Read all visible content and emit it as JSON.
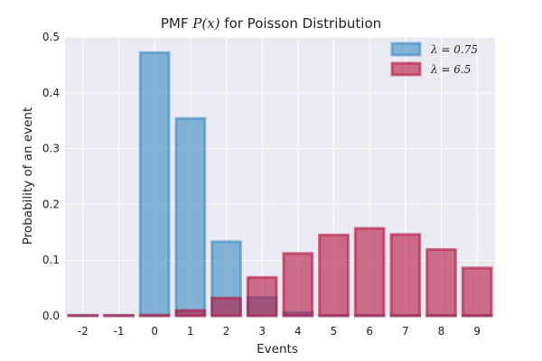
{
  "chart_data": {
    "type": "bar",
    "title_prefix": "PMF ",
    "title_math": "P(x)",
    "title_suffix": " for Poisson Distribution",
    "xlabel": "Events",
    "ylabel": "Probability of an event",
    "categories": [
      "-2",
      "-1",
      "0",
      "1",
      "2",
      "3",
      "4",
      "5",
      "6",
      "7",
      "8",
      "9"
    ],
    "x": [
      -2,
      -1,
      0,
      1,
      2,
      3,
      4,
      5,
      6,
      7,
      8,
      9
    ],
    "ylim": [
      0,
      0.5
    ],
    "yticks": [
      "0.0",
      "0.1",
      "0.2",
      "0.3",
      "0.4",
      "0.5"
    ],
    "ytick_values": [
      0,
      0.1,
      0.2,
      0.3,
      0.4,
      0.5
    ],
    "grid": true,
    "legend_position": "top-right",
    "series": [
      {
        "name": "λ = 0.75",
        "fill": "#3b8bc2",
        "edge": "#3b8bc2",
        "values": [
          0,
          0,
          0.472,
          0.354,
          0.133,
          0.033,
          0.006,
          0.001,
          0.0001,
          0,
          0,
          0
        ]
      },
      {
        "name": "λ = 6.5",
        "fill": "#b5163f",
        "edge": "#b5163f",
        "values": [
          0,
          0,
          0.0015,
          0.0098,
          0.032,
          0.069,
          0.112,
          0.145,
          0.157,
          0.146,
          0.119,
          0.086
        ]
      }
    ]
  }
}
